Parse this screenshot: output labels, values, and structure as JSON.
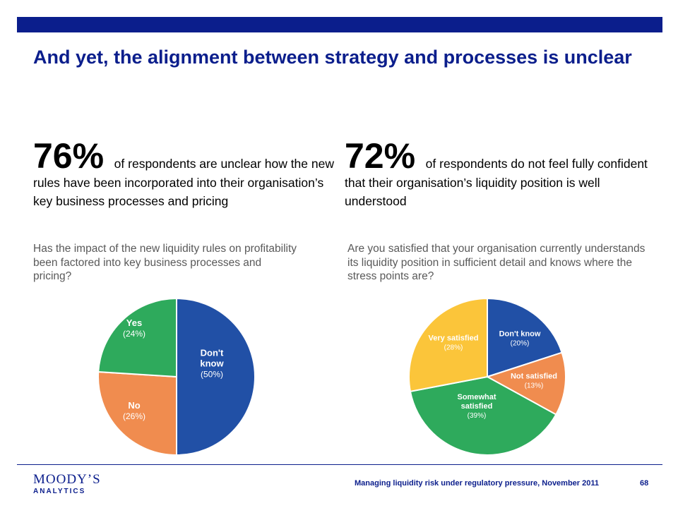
{
  "header": {
    "title": "And yet, the alignment between strategy and processes is unclear"
  },
  "stats": [
    {
      "big": "76%",
      "text": "of respondents are unclear how the new rules have been incorporated into their organisation’s key business processes and pricing"
    },
    {
      "big": "72%",
      "text": "of respondents do not feel fully confident that their organisation’s liquidity position is well understood"
    }
  ],
  "questions": [
    "Has the impact of the new liquidity rules on profitability been factored into key business processes and pricing?",
    "Are you satisfied that your organisation currently understands its liquidity position in sufficient detail and knows where the stress points are?"
  ],
  "chart_data": [
    {
      "type": "pie",
      "title": "",
      "slices": [
        {
          "label": "Don't know",
          "pct_label": "(50%)",
          "value": 50,
          "color": "#2150a6"
        },
        {
          "label": "No",
          "pct_label": "(26%)",
          "value": 26,
          "color": "#f08c4f"
        },
        {
          "label": "Yes",
          "pct_label": "(24%)",
          "value": 24,
          "color": "#2eaa5c"
        }
      ]
    },
    {
      "type": "pie",
      "title": "",
      "slices": [
        {
          "label": "Don't know",
          "pct_label": "(20%)",
          "value": 20,
          "color": "#2150a6"
        },
        {
          "label": "Not satisfied",
          "pct_label": "(13%)",
          "value": 13,
          "color": "#f08c4f"
        },
        {
          "label": "Somewhat satisfied",
          "pct_label": "(39%)",
          "value": 39,
          "color": "#2eaa5c"
        },
        {
          "label": "Very satisfied",
          "pct_label": "(28%)",
          "value": 28,
          "color": "#fbc53a"
        }
      ]
    }
  ],
  "footer": {
    "logo_name": "MOODY’S",
    "logo_sub": "ANALYTICS",
    "text": "Managing liquidity  risk under regulatory pressure, November 2011",
    "page": "68"
  }
}
